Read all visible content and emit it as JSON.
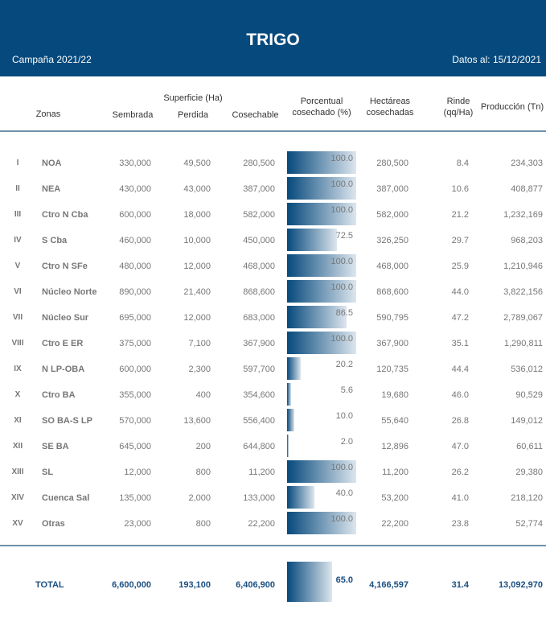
{
  "header": {
    "title": "TRIGO",
    "campaign": "Campaña 2021/22",
    "date": "Datos al: 15/12/2021"
  },
  "columns": {
    "zonas": "Zonas",
    "superficie": "Superficie (Ha)",
    "sembrada": "Sembrada",
    "perdida": "Perdida",
    "cosechable": "Cosechable",
    "porcentual": "Porcentual",
    "cosechado": "cosechado (%)",
    "hectareas": "Hectáreas",
    "cosechadas": "cosechadas",
    "rinde": "Rinde",
    "rinde_unit": "(qq/Ha)",
    "produccion": "Producción (Tn)"
  },
  "rows": [
    [
      "I",
      "NOA",
      "330,000",
      "49,500",
      "280,500",
      "100.0",
      "280,500",
      "8.4",
      "234,303"
    ],
    [
      "II",
      "NEA",
      "430,000",
      "43,000",
      "387,000",
      "100.0",
      "387,000",
      "10.6",
      "408,877"
    ],
    [
      "III",
      "Ctro N Cba",
      "600,000",
      "18,000",
      "582,000",
      "100.0",
      "582,000",
      "21.2",
      "1,232,169"
    ],
    [
      "IV",
      "S Cba",
      "460,000",
      "10,000",
      "450,000",
      "72.5",
      "326,250",
      "29.7",
      "968,203"
    ],
    [
      "V",
      "Ctro N SFe",
      "480,000",
      "12,000",
      "468,000",
      "100.0",
      "468,000",
      "25.9",
      "1,210,946"
    ],
    [
      "VI",
      "Núcleo Norte",
      "890,000",
      "21,400",
      "868,600",
      "100.0",
      "868,600",
      "44.0",
      "3,822,156"
    ],
    [
      "VII",
      "Núcleo Sur",
      "695,000",
      "12,000",
      "683,000",
      "86.5",
      "590,795",
      "47.2",
      "2,789,067"
    ],
    [
      "VIII",
      "Ctro E ER",
      "375,000",
      "7,100",
      "367,900",
      "100.0",
      "367,900",
      "35.1",
      "1,290,811"
    ],
    [
      "IX",
      "N LP-OBA",
      "600,000",
      "2,300",
      "597,700",
      "20.2",
      "120,735",
      "44.4",
      "536,012"
    ],
    [
      "X",
      "Ctro BA",
      "355,000",
      "400",
      "354,600",
      "5.6",
      "19,680",
      "46.0",
      "90,529"
    ],
    [
      "XI",
      "SO BA-S LP",
      "570,000",
      "13,600",
      "556,400",
      "10.0",
      "55,640",
      "26.8",
      "149,012"
    ],
    [
      "XII",
      "SE BA",
      "645,000",
      "200",
      "644,800",
      "2.0",
      "12,896",
      "47.0",
      "60,611"
    ],
    [
      "XIII",
      "SL",
      "12,000",
      "800",
      "11,200",
      "100.0",
      "11,200",
      "26.2",
      "29,380"
    ],
    [
      "XIV",
      "Cuenca Sal",
      "135,000",
      "2,000",
      "133,000",
      "40.0",
      "53,200",
      "41.0",
      "218,120"
    ],
    [
      "XV",
      "Otras",
      "23,000",
      "800",
      "22,200",
      "100.0",
      "22,200",
      "23.8",
      "52,774"
    ]
  ],
  "total": [
    "",
    "TOTAL",
    "6,600,000",
    "193,100",
    "6,406,900",
    "65.0",
    "4,166,597",
    "31.4",
    "13,092,970"
  ]
}
